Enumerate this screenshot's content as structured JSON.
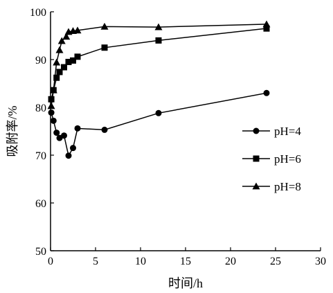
{
  "chart_data": {
    "type": "line",
    "title": "",
    "xlabel": "时间/h",
    "ylabel": "吸附率/%",
    "xlim": [
      0,
      30
    ],
    "ylim": [
      50,
      100
    ],
    "xticks": [
      0,
      5,
      10,
      15,
      20,
      25,
      30
    ],
    "yticks": [
      50,
      60,
      70,
      80,
      90,
      100
    ],
    "grid": false,
    "legend_position": "right",
    "series": [
      {
        "name": "pH=4",
        "marker": "circle",
        "points": [
          [
            0.083,
            78.9
          ],
          [
            0.33,
            77.2
          ],
          [
            0.67,
            74.7
          ],
          [
            1.0,
            73.6
          ],
          [
            1.5,
            74.1
          ],
          [
            2.0,
            69.9
          ],
          [
            2.5,
            71.5
          ],
          [
            3.0,
            75.6
          ],
          [
            6.0,
            75.3
          ],
          [
            12.0,
            78.8
          ],
          [
            24.0,
            83.0
          ]
        ]
      },
      {
        "name": "pH=6",
        "marker": "square",
        "points": [
          [
            0.083,
            81.7
          ],
          [
            0.33,
            83.6
          ],
          [
            0.67,
            86.2
          ],
          [
            1.0,
            87.4
          ],
          [
            1.5,
            88.4
          ],
          [
            2.0,
            89.5
          ],
          [
            2.5,
            89.8
          ],
          [
            3.0,
            90.6
          ],
          [
            6.0,
            92.5
          ],
          [
            12.0,
            94.0
          ],
          [
            24.0,
            96.5
          ]
        ]
      },
      {
        "name": "pH=8",
        "marker": "triangle",
        "points": [
          [
            0.083,
            80.3
          ],
          [
            0.33,
            83.6
          ],
          [
            0.67,
            89.4
          ],
          [
            1.0,
            92.0
          ],
          [
            1.25,
            93.9
          ],
          [
            1.75,
            94.8
          ],
          [
            2.0,
            95.8
          ],
          [
            2.5,
            96.0
          ],
          [
            3.0,
            96.1
          ],
          [
            6.0,
            96.9
          ],
          [
            12.0,
            96.8
          ],
          [
            24.0,
            97.4
          ]
        ]
      }
    ]
  }
}
